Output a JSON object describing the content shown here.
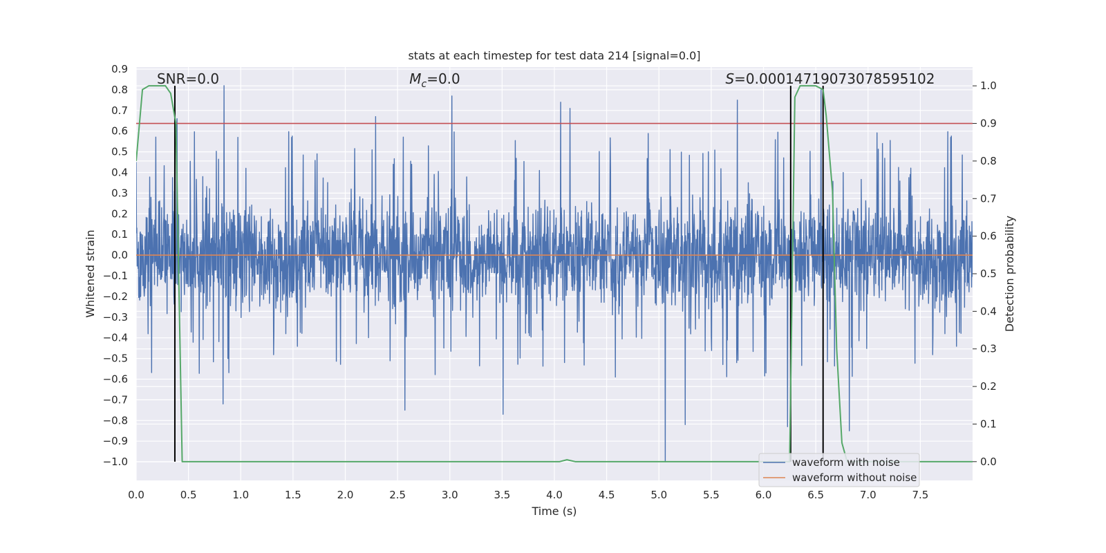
{
  "chart_data": {
    "type": "line",
    "title": "stats at each timestep for test data 214 [signal=0.0]",
    "xlabel": "Time (s)",
    "ylabel": "Whitened strain",
    "y2label": "Detection probability",
    "xlim": [
      0.0,
      8.0
    ],
    "ylim": [
      -1.09,
      0.91
    ],
    "y2lim": [
      -0.05,
      1.05
    ],
    "xticks": [
      0.0,
      0.5,
      1.0,
      1.5,
      2.0,
      2.5,
      3.0,
      3.5,
      4.0,
      4.5,
      5.0,
      5.5,
      6.0,
      6.5,
      7.0,
      7.5
    ],
    "xtick_labels": [
      "0.0",
      "0.5",
      "1.0",
      "1.5",
      "2.0",
      "2.5",
      "3.0",
      "3.5",
      "4.0",
      "4.5",
      "5.0",
      "5.5",
      "6.0",
      "6.5",
      "7.0",
      "7.5"
    ],
    "yticks": [
      0.9,
      0.8,
      0.7,
      0.6,
      0.5,
      0.4,
      0.3,
      0.2,
      0.1,
      0.0,
      -0.1,
      -0.2,
      -0.3,
      -0.4,
      -0.5,
      -0.6,
      -0.7,
      -0.8,
      -0.9,
      -1.0
    ],
    "ytick_labels": [
      "0.9",
      "0.8",
      "0.7",
      "0.6",
      "0.5",
      "0.4",
      "0.3",
      "0.2",
      "0.1",
      "0.0",
      "−0.1",
      "−0.2",
      "−0.3",
      "−0.4",
      "−0.5",
      "−0.6",
      "−0.7",
      "−0.8",
      "−0.9",
      "−1.0"
    ],
    "y2ticks": [
      1.0,
      0.9,
      0.8,
      0.7,
      0.6,
      0.5,
      0.4,
      0.3,
      0.2,
      0.1,
      0.0
    ],
    "y2tick_labels": [
      "1.0",
      "0.9",
      "0.8",
      "0.7",
      "0.6",
      "0.5",
      "0.4",
      "0.3",
      "0.2",
      "0.1",
      "0.0"
    ],
    "grid": true,
    "legend_position": "bottom-right",
    "series": [
      {
        "name": "waveform with noise",
        "color": "#4c72b0",
        "kind": "noise",
        "x_range": [
          0.0,
          8.0
        ],
        "typical_range": [
          -0.45,
          0.45
        ],
        "max": 0.82,
        "min": -1.0,
        "peaks": [
          {
            "x": 0.84,
            "y": 0.82
          },
          {
            "x": 3.02,
            "y": 0.77
          },
          {
            "x": 4.06,
            "y": 0.74
          },
          {
            "x": 4.15,
            "y": 0.71
          },
          {
            "x": 5.75,
            "y": 0.75
          },
          {
            "x": 6.55,
            "y": 0.8
          },
          {
            "x": 2.29,
            "y": 0.67
          },
          {
            "x": 0.39,
            "y": 0.66
          },
          {
            "x": 5.06,
            "y": -1.0
          },
          {
            "x": 3.51,
            "y": -0.77
          },
          {
            "x": 2.57,
            "y": -0.75
          },
          {
            "x": 0.83,
            "y": -0.72
          },
          {
            "x": 6.82,
            "y": -0.85
          },
          {
            "x": 6.23,
            "y": -0.83
          },
          {
            "x": 5.25,
            "y": -0.82
          }
        ]
      },
      {
        "name": "waveform without noise",
        "color": "#dd8452",
        "x": [
          0.0,
          8.0
        ],
        "y": [
          0.0,
          0.0
        ]
      },
      {
        "name": "",
        "axis": "right",
        "color": "#55a868",
        "x": [
          0.0,
          0.06,
          0.12,
          0.2,
          0.28,
          0.33,
          0.38,
          0.44,
          0.5,
          4.0,
          4.05,
          4.12,
          4.2,
          4.25,
          6.25,
          6.3,
          6.35,
          6.45,
          6.5,
          6.57,
          6.6,
          6.66,
          6.7,
          6.75,
          6.8,
          8.0
        ],
        "y": [
          0.8,
          0.99,
          1.0,
          1.0,
          1.0,
          0.98,
          0.9,
          0.0,
          0.0,
          0.0,
          0.0,
          0.005,
          0.0,
          0.0,
          0.0,
          0.97,
          1.0,
          1.0,
          1.0,
          0.99,
          0.92,
          0.72,
          0.3,
          0.05,
          0.0,
          0.0
        ]
      }
    ],
    "threshold": {
      "color": "#c44e52",
      "axis": "right",
      "y": 0.9
    },
    "markers": [
      {
        "x": 0.37,
        "color": "#000000"
      },
      {
        "x": 6.26,
        "color": "#000000"
      },
      {
        "x": 6.57,
        "color": "#000000"
      }
    ],
    "annotations": [
      {
        "text": "SNR=0.0",
        "html": "SNR=0.0",
        "x": 0.5
      },
      {
        "text": "Mc=0.0",
        "x": 2.9
      },
      {
        "text": "S=0.00014719073078595102",
        "x": 7.2
      }
    ]
  }
}
